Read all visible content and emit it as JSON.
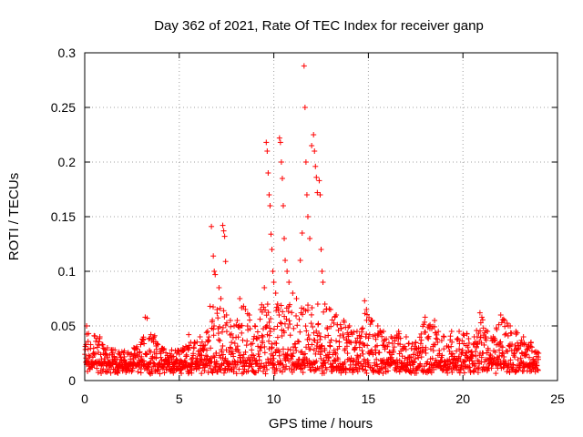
{
  "chart_data": {
    "type": "scatter",
    "title": "Day 362 of 2021, Rate Of TEC Index for receiver ganp",
    "xlabel": "GPS time / hours",
    "ylabel": "ROTI / TECUs",
    "xlim": [
      0,
      25
    ],
    "ylim": [
      0,
      0.3
    ],
    "xticks": [
      0,
      5,
      10,
      15,
      20,
      25
    ],
    "xtick_labels": [
      "0",
      "5",
      "10",
      "15",
      "20",
      "25"
    ],
    "yticks": [
      0,
      0.05,
      0.1,
      0.15,
      0.2,
      0.25,
      0.3
    ],
    "ytick_labels": [
      "0",
      "0.05",
      "0.1",
      "0.15",
      "0.2",
      "0.25",
      "0.3"
    ],
    "grid": true,
    "marker": "+",
    "color": "#ff0000",
    "series": [
      {
        "name": "ROTI",
        "points": [
          [
            0.1,
            0.05
          ],
          [
            0.2,
            0.043
          ],
          [
            0.5,
            0.041
          ],
          [
            0.8,
            0.04
          ],
          [
            1.2,
            0.03
          ],
          [
            1.6,
            0.028
          ],
          [
            2.1,
            0.027
          ],
          [
            2.6,
            0.03
          ],
          [
            3.0,
            0.035
          ],
          [
            3.2,
            0.058
          ],
          [
            3.3,
            0.057
          ],
          [
            3.5,
            0.042
          ],
          [
            3.7,
            0.041
          ],
          [
            4.2,
            0.029
          ],
          [
            4.6,
            0.028
          ],
          [
            5.2,
            0.03
          ],
          [
            5.5,
            0.042
          ],
          [
            5.8,
            0.035
          ],
          [
            6.1,
            0.04
          ],
          [
            6.5,
            0.045
          ],
          [
            6.7,
            0.141
          ],
          [
            6.8,
            0.114
          ],
          [
            6.85,
            0.1
          ],
          [
            6.9,
            0.097
          ],
          [
            7.0,
            0.065
          ],
          [
            7.1,
            0.085
          ],
          [
            7.2,
            0.075
          ],
          [
            7.3,
            0.142
          ],
          [
            7.35,
            0.137
          ],
          [
            7.4,
            0.132
          ],
          [
            7.45,
            0.109
          ],
          [
            7.5,
            0.06
          ],
          [
            7.7,
            0.055
          ],
          [
            7.9,
            0.05
          ],
          [
            8.2,
            0.075
          ],
          [
            8.4,
            0.068
          ],
          [
            8.7,
            0.06
          ],
          [
            9.0,
            0.05
          ],
          [
            9.3,
            0.065
          ],
          [
            9.5,
            0.085
          ],
          [
            9.6,
            0.218
          ],
          [
            9.65,
            0.21
          ],
          [
            9.7,
            0.19
          ],
          [
            9.75,
            0.17
          ],
          [
            9.8,
            0.16
          ],
          [
            9.85,
            0.134
          ],
          [
            9.9,
            0.12
          ],
          [
            9.95,
            0.1
          ],
          [
            10.0,
            0.09
          ],
          [
            10.1,
            0.08
          ],
          [
            10.2,
            0.07
          ],
          [
            10.3,
            0.222
          ],
          [
            10.35,
            0.218
          ],
          [
            10.4,
            0.2
          ],
          [
            10.45,
            0.185
          ],
          [
            10.5,
            0.16
          ],
          [
            10.55,
            0.13
          ],
          [
            10.6,
            0.11
          ],
          [
            10.7,
            0.1
          ],
          [
            10.8,
            0.09
          ],
          [
            11.0,
            0.08
          ],
          [
            11.2,
            0.075
          ],
          [
            11.4,
            0.11
          ],
          [
            11.5,
            0.135
          ],
          [
            11.6,
            0.288
          ],
          [
            11.65,
            0.25
          ],
          [
            11.7,
            0.2
          ],
          [
            11.75,
            0.17
          ],
          [
            11.8,
            0.15
          ],
          [
            11.9,
            0.13
          ],
          [
            12.0,
            0.215
          ],
          [
            12.1,
            0.225
          ],
          [
            12.15,
            0.21
          ],
          [
            12.2,
            0.196
          ],
          [
            12.25,
            0.186
          ],
          [
            12.3,
            0.172
          ],
          [
            12.4,
            0.183
          ],
          [
            12.45,
            0.17
          ],
          [
            12.5,
            0.12
          ],
          [
            12.55,
            0.1
          ],
          [
            12.6,
            0.09
          ],
          [
            12.7,
            0.07
          ],
          [
            13.0,
            0.065
          ],
          [
            13.3,
            0.06
          ],
          [
            13.7,
            0.055
          ],
          [
            14.0,
            0.05
          ],
          [
            14.4,
            0.045
          ],
          [
            14.7,
            0.048
          ],
          [
            14.8,
            0.073
          ],
          [
            14.9,
            0.065
          ],
          [
            15.2,
            0.055
          ],
          [
            15.5,
            0.05
          ],
          [
            15.8,
            0.045
          ],
          [
            16.2,
            0.04
          ],
          [
            16.6,
            0.045
          ],
          [
            17.0,
            0.04
          ],
          [
            17.5,
            0.035
          ],
          [
            18.0,
            0.058
          ],
          [
            18.2,
            0.05
          ],
          [
            18.5,
            0.055
          ],
          [
            19.0,
            0.04
          ],
          [
            19.4,
            0.045
          ],
          [
            19.8,
            0.045
          ],
          [
            20.2,
            0.043
          ],
          [
            20.6,
            0.04
          ],
          [
            20.9,
            0.062
          ],
          [
            21.0,
            0.058
          ],
          [
            21.3,
            0.045
          ],
          [
            21.6,
            0.04
          ],
          [
            22.0,
            0.06
          ],
          [
            22.2,
            0.055
          ],
          [
            22.5,
            0.05
          ],
          [
            22.8,
            0.045
          ],
          [
            23.2,
            0.04
          ],
          [
            23.6,
            0.035
          ],
          [
            24.0,
            0.025
          ]
        ]
      }
    ]
  }
}
